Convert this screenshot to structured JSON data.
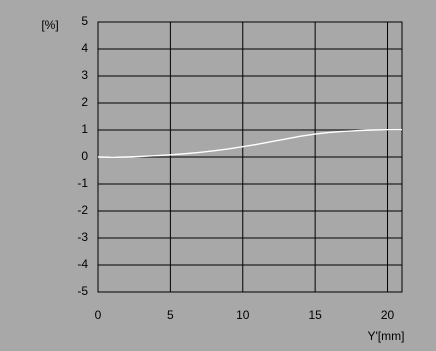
{
  "chart_data": {
    "type": "line",
    "title": "",
    "ylabel": "[%]",
    "xlabel": "Y'[mm]",
    "xlim": [
      0,
      21
    ],
    "ylim": [
      -5,
      5
    ],
    "x_ticks": [
      0,
      5,
      10,
      15,
      20
    ],
    "y_ticks": [
      -5,
      -4,
      -3,
      -2,
      -1,
      0,
      1,
      2,
      3,
      4,
      5
    ],
    "x_tick_labels": [
      "0",
      "5",
      "10",
      "15",
      "20"
    ],
    "y_tick_labels": [
      "-5",
      "-4",
      "-3",
      "-2",
      "-1",
      "0",
      "1",
      "2",
      "3",
      "4",
      "5"
    ],
    "grid": true,
    "series": [
      {
        "x": [
          0,
          1,
          2,
          3,
          4,
          5,
          6,
          7,
          8,
          9,
          10,
          11,
          12,
          13,
          14,
          15,
          16,
          17,
          18,
          19,
          20,
          21
        ],
        "y": [
          0,
          -0.01,
          0,
          0.02,
          0.05,
          0.08,
          0.12,
          0.17,
          0.23,
          0.3,
          0.38,
          0.47,
          0.57,
          0.67,
          0.77,
          0.85,
          0.91,
          0.95,
          0.98,
          1.0,
          1.01,
          1.01
        ]
      }
    ]
  },
  "colors": {
    "background": "#a8a8a8",
    "axis": "#000000",
    "grid": "#000000",
    "series": "#ffffff"
  }
}
